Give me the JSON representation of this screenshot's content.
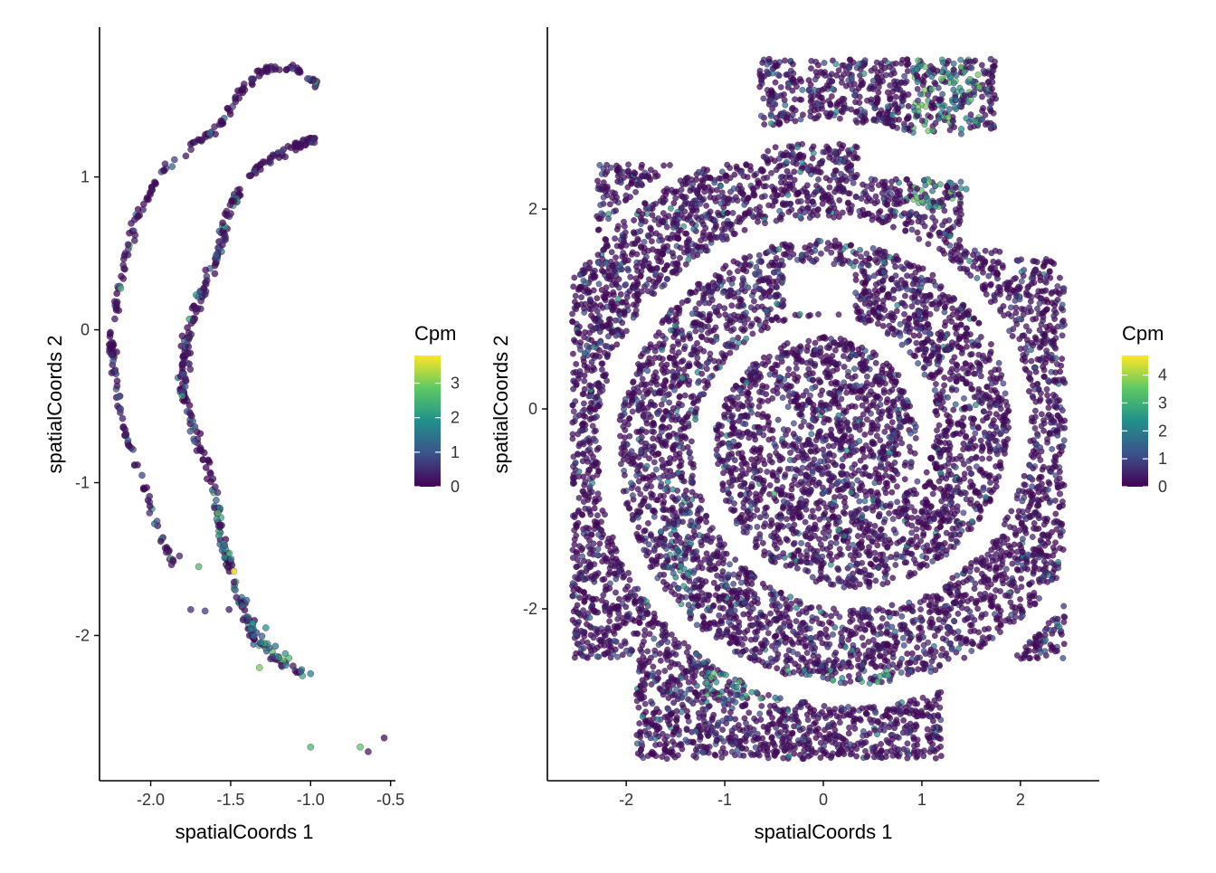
{
  "colors": {
    "background": "#ffffff",
    "axis": "#000000",
    "point_outline": "#3a0a4a",
    "viridis": [
      "#440154",
      "#3b528b",
      "#21908c",
      "#5dc963",
      "#fde725"
    ]
  },
  "chart_data": [
    {
      "type": "scatter",
      "title": "",
      "xlabel": "spatialCoords 1",
      "ylabel": "spatialCoords 2",
      "xlim": [
        -2.32,
        -0.47
      ],
      "ylim": [
        -2.95,
        1.98
      ],
      "xticks": [
        -2.0,
        -1.5,
        -1.0,
        -0.5
      ],
      "xtick_labels": [
        "-2.0",
        "-1.5",
        "-1.0",
        "-0.5"
      ],
      "yticks": [
        -2,
        -1,
        0,
        1
      ],
      "ytick_labels": [
        "-2",
        "-1",
        "0",
        "1"
      ],
      "color_variable": "Cpm",
      "colorbar": {
        "title": "Cpm",
        "range": [
          0,
          3.8
        ],
        "ticks": [
          0,
          1,
          2,
          3
        ],
        "tick_labels": [
          "0",
          "1",
          "2",
          "3"
        ],
        "palette": "viridis"
      },
      "grid": false,
      "legend_position": "right",
      "point_count": 620,
      "points": [
        [
          -1.0,
          -2.73,
          2.6
        ],
        [
          -0.69,
          -2.73,
          2.8
        ],
        [
          -0.64,
          -2.76,
          0.3
        ],
        [
          -0.54,
          -2.67,
          0.2
        ],
        [
          -1.48,
          -1.58,
          3.8
        ],
        [
          -1.58,
          -1.2,
          2.7
        ],
        [
          -1.7,
          -1.55,
          2.6
        ],
        [
          -1.32,
          -2.21,
          3.0
        ],
        [
          -1.82,
          -1.48,
          0.4
        ],
        [
          -1.75,
          -1.83,
          0.5
        ],
        [
          -1.66,
          -1.84,
          0.7
        ],
        [
          -1.51,
          -1.83,
          0.3
        ],
        [
          -1.0,
          -2.25,
          1.7
        ],
        [
          -1.4,
          -1.77,
          1.3
        ],
        [
          -1.28,
          -1.95,
          2.0
        ],
        [
          -1.22,
          -2.07,
          1.5
        ]
      ]
    },
    {
      "type": "scatter",
      "title": "",
      "xlabel": "spatialCoords 1",
      "ylabel": "spatialCoords 2",
      "xlim": [
        -2.8,
        2.8
      ],
      "ylim": [
        -3.72,
        3.82
      ],
      "xticks": [
        -2,
        -1,
        0,
        1,
        2
      ],
      "xtick_labels": [
        "-2",
        "-1",
        "0",
        "1",
        "2"
      ],
      "yticks": [
        -2,
        0,
        2
      ],
      "ytick_labels": [
        "-2",
        "0",
        "2"
      ],
      "color_variable": "Cpm",
      "colorbar": {
        "title": "Cpm",
        "range": [
          0,
          4.7
        ],
        "ticks": [
          0,
          1,
          2,
          3,
          4
        ],
        "tick_labels": [
          "0",
          "1",
          "2",
          "3",
          "4"
        ],
        "palette": "viridis"
      },
      "grid": false,
      "legend_position": "right",
      "point_count": 9000,
      "points": [
        [
          1.7,
          3.5,
          0.5
        ],
        [
          1.2,
          3.3,
          3.6
        ],
        [
          1.1,
          3.2,
          3.2
        ],
        [
          1.4,
          2.8,
          2.4
        ],
        [
          1.45,
          2.2,
          2.2
        ],
        [
          -0.85,
          -2.73,
          3.3
        ],
        [
          0.55,
          -2.73,
          3.0
        ],
        [
          -0.5,
          -0.85,
          3.0
        ],
        [
          -1.45,
          -1.57,
          2.5
        ],
        [
          2.4,
          -0.85,
          0.3
        ],
        [
          -2.5,
          -1.45,
          0.2
        ],
        [
          -0.55,
          3.5,
          0.1
        ],
        [
          0.15,
          -3.45,
          0.2
        ]
      ]
    }
  ]
}
